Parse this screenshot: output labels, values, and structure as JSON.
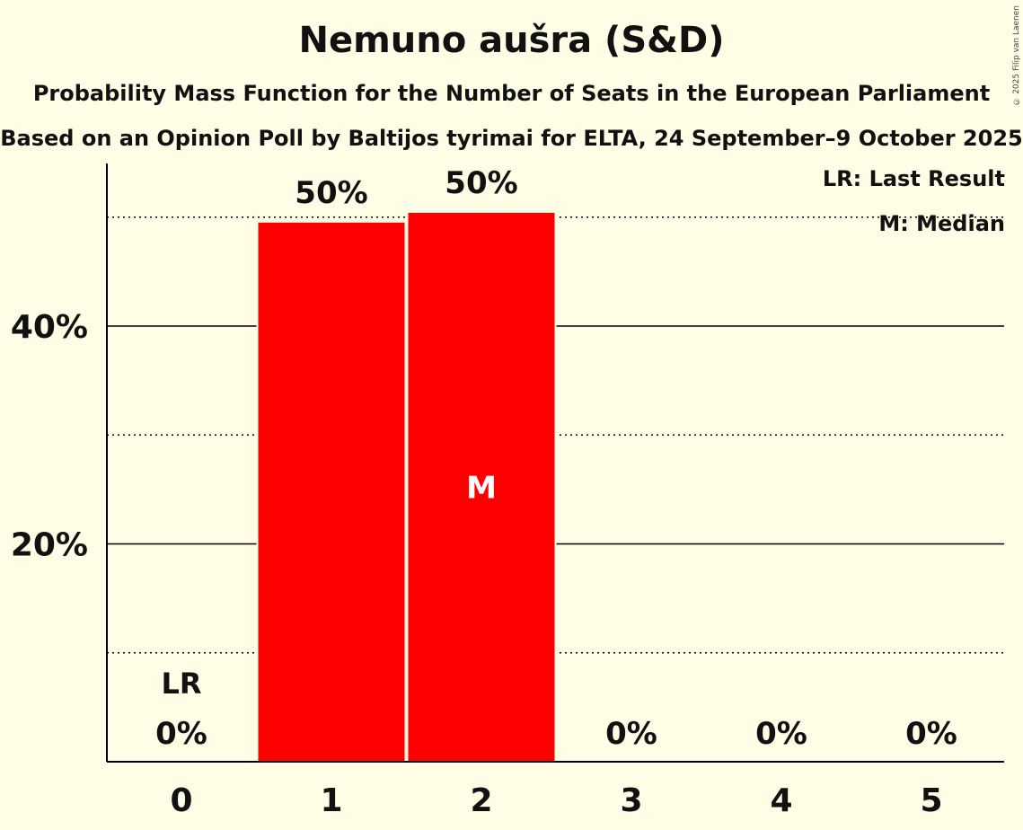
{
  "copyright": "© 2025 Filip van Laenen",
  "chart_data": {
    "type": "bar",
    "title": "Nemuno aušra (S&D)",
    "subtitle": "Probability Mass Function for the Number of Seats in the European Parliament",
    "subtitle2": "Based on an Opinion Poll by Baltijos tyrimai for ELTA, 24 September–9 October 2025",
    "categories": [
      "0",
      "1",
      "2",
      "3",
      "4",
      "5"
    ],
    "values": [
      0,
      49.5,
      50.4,
      0,
      0,
      0
    ],
    "value_labels": [
      "0%",
      "50%",
      "50%",
      "0%",
      "0%",
      "0%"
    ],
    "ylim": [
      0,
      55
    ],
    "yticks": [
      20,
      40
    ],
    "ytick_labels": [
      "20%",
      "40%"
    ],
    "minor_gridlines": [
      10,
      30,
      50
    ],
    "last_result_index": 0,
    "last_result_label": "LR",
    "median_index": 2,
    "median_label": "M",
    "legend": [
      "LR: Last Result",
      "M: Median"
    ],
    "legend_position": "top-right",
    "bar_color": "#ff0000"
  }
}
